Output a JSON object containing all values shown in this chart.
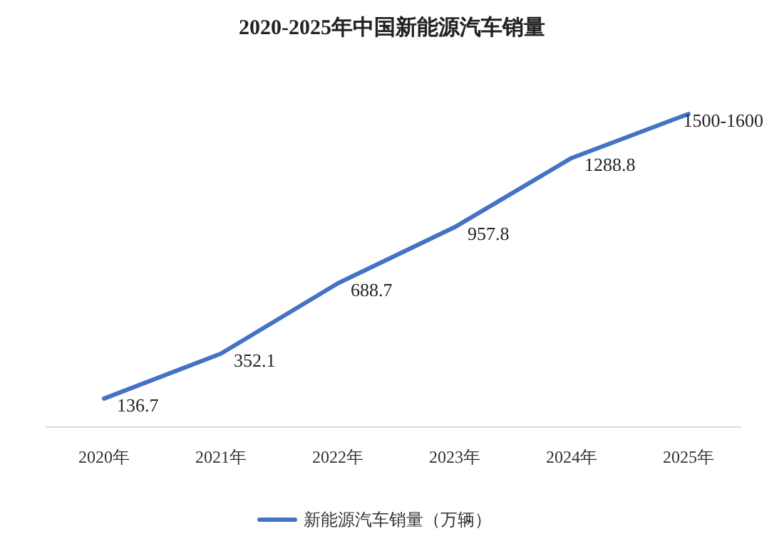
{
  "chart_data": {
    "type": "line",
    "title": "2020-2025年中国新能源汽车销量",
    "categories": [
      "2020年",
      "2021年",
      "2022年",
      "2023年",
      "2024年",
      "2025年"
    ],
    "series": [
      {
        "name": "新能源汽车销量（万辆）",
        "color": "#4472c4",
        "values": [
          136.7,
          352.1,
          688.7,
          957.8,
          1288.8,
          1500
        ],
        "value_labels": [
          "136.7",
          "352.1",
          "688.7",
          "957.8",
          "1288.8",
          "1500-1600"
        ]
      }
    ],
    "tick_labels": "x",
    "legend": "bottom",
    "marker": "none",
    "line_style": "solid"
  }
}
